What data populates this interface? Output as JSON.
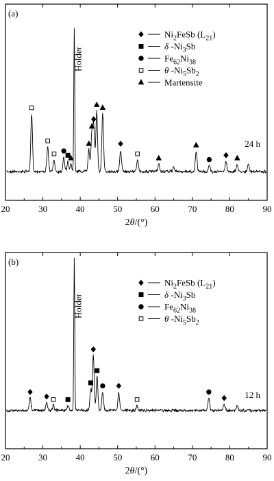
{
  "chart_data": [
    {
      "type": "line",
      "panel_label": "(a)",
      "time_label": "24 h",
      "xlabel": "2θ/(°)",
      "ylabel": "",
      "xlim": [
        20,
        90
      ],
      "x_ticks": [
        20,
        30,
        40,
        50,
        60,
        70,
        80,
        90
      ],
      "grid": false,
      "legend_position": "top-right",
      "legend": [
        {
          "marker": "diamond-filled",
          "label": "Ni2FeSb (L21)"
        },
        {
          "marker": "square-filled",
          "label": "δ -Ni3Sb"
        },
        {
          "marker": "circle-filled",
          "label": "Fe62Ni38"
        },
        {
          "marker": "square-open",
          "label": "θ -Ni5Sb2"
        },
        {
          "marker": "triangle-filled",
          "label": "Martensite"
        }
      ],
      "annotations": [
        {
          "text": "Holder",
          "x": 38.4
        }
      ],
      "peaks": [
        {
          "x": 27.0,
          "intensity": 0.4,
          "phase": "square-open"
        },
        {
          "x": 31.3,
          "intensity": 0.17,
          "phase": "square-open"
        },
        {
          "x": 33.0,
          "intensity": 0.08,
          "phase": "square-open"
        },
        {
          "x": 35.6,
          "intensity": 0.1,
          "phase": "circle-filled"
        },
        {
          "x": 36.7,
          "intensity": 0.07,
          "phase": "square-filled"
        },
        {
          "x": 37.5,
          "intensity": 0.05,
          "phase": "triangle-filled"
        },
        {
          "x": 38.4,
          "intensity": 1.0,
          "phase": "holder"
        },
        {
          "x": 42.3,
          "intensity": 0.15,
          "phase": "triangle-filled"
        },
        {
          "x": 43.1,
          "intensity": 0.27,
          "phase": "triangle-filled"
        },
        {
          "x": 43.6,
          "intensity": 0.32,
          "phase": "diamond-filled"
        },
        {
          "x": 44.4,
          "intensity": 0.42,
          "phase": "triangle-filled"
        },
        {
          "x": 46.0,
          "intensity": 0.4,
          "phase": "triangle-filled"
        },
        {
          "x": 50.8,
          "intensity": 0.15,
          "phase": "diamond-filled"
        },
        {
          "x": 55.3,
          "intensity": 0.08,
          "phase": "square-open"
        },
        {
          "x": 61.0,
          "intensity": 0.05,
          "phase": "triangle-filled"
        },
        {
          "x": 65.0,
          "intensity": 0.03,
          "phase": "none"
        },
        {
          "x": 71.0,
          "intensity": 0.14,
          "phase": "triangle-filled"
        },
        {
          "x": 74.5,
          "intensity": 0.04,
          "phase": "circle-filled"
        },
        {
          "x": 79.0,
          "intensity": 0.07,
          "phase": "diamond-filled"
        },
        {
          "x": 82.0,
          "intensity": 0.05,
          "phase": "triangle-filled"
        },
        {
          "x": 85.0,
          "intensity": 0.05,
          "phase": "none"
        }
      ]
    },
    {
      "type": "line",
      "panel_label": "(b)",
      "time_label": "12 h",
      "xlabel": "2θ/(°)",
      "ylabel": "",
      "xlim": [
        20,
        90
      ],
      "x_ticks": [
        20,
        30,
        40,
        50,
        60,
        70,
        80,
        90
      ],
      "grid": false,
      "legend_position": "top-right",
      "legend": [
        {
          "marker": "diamond-filled",
          "label": "Ni2FeSb (L21)"
        },
        {
          "marker": "square-filled",
          "label": "δ -Ni3Sb"
        },
        {
          "marker": "circle-filled",
          "label": "Fe62Ni38"
        },
        {
          "marker": "square-open",
          "label": "θ -Ni5Sb2"
        }
      ],
      "annotations": [
        {
          "text": "Holder",
          "x": 38.4
        }
      ],
      "peaks": [
        {
          "x": 26.6,
          "intensity": 0.08,
          "phase": "diamond-filled"
        },
        {
          "x": 31.0,
          "intensity": 0.05,
          "phase": "diamond-filled"
        },
        {
          "x": 32.8,
          "intensity": 0.03,
          "phase": "square-open"
        },
        {
          "x": 36.7,
          "intensity": 0.03,
          "phase": "square-filled"
        },
        {
          "x": 38.4,
          "intensity": 1.0,
          "phase": "holder"
        },
        {
          "x": 42.8,
          "intensity": 0.14,
          "phase": "square-filled"
        },
        {
          "x": 43.5,
          "intensity": 0.36,
          "phase": "diamond-filled"
        },
        {
          "x": 44.5,
          "intensity": 0.22,
          "phase": "square-filled"
        },
        {
          "x": 46.0,
          "intensity": 0.12,
          "phase": "circle-filled"
        },
        {
          "x": 50.3,
          "intensity": 0.12,
          "phase": "diamond-filled"
        },
        {
          "x": 55.2,
          "intensity": 0.03,
          "phase": "square-open"
        },
        {
          "x": 74.4,
          "intensity": 0.08,
          "phase": "circle-filled"
        },
        {
          "x": 78.5,
          "intensity": 0.04,
          "phase": "diamond-filled"
        },
        {
          "x": 82.0,
          "intensity": 0.03,
          "phase": "none"
        }
      ]
    }
  ]
}
